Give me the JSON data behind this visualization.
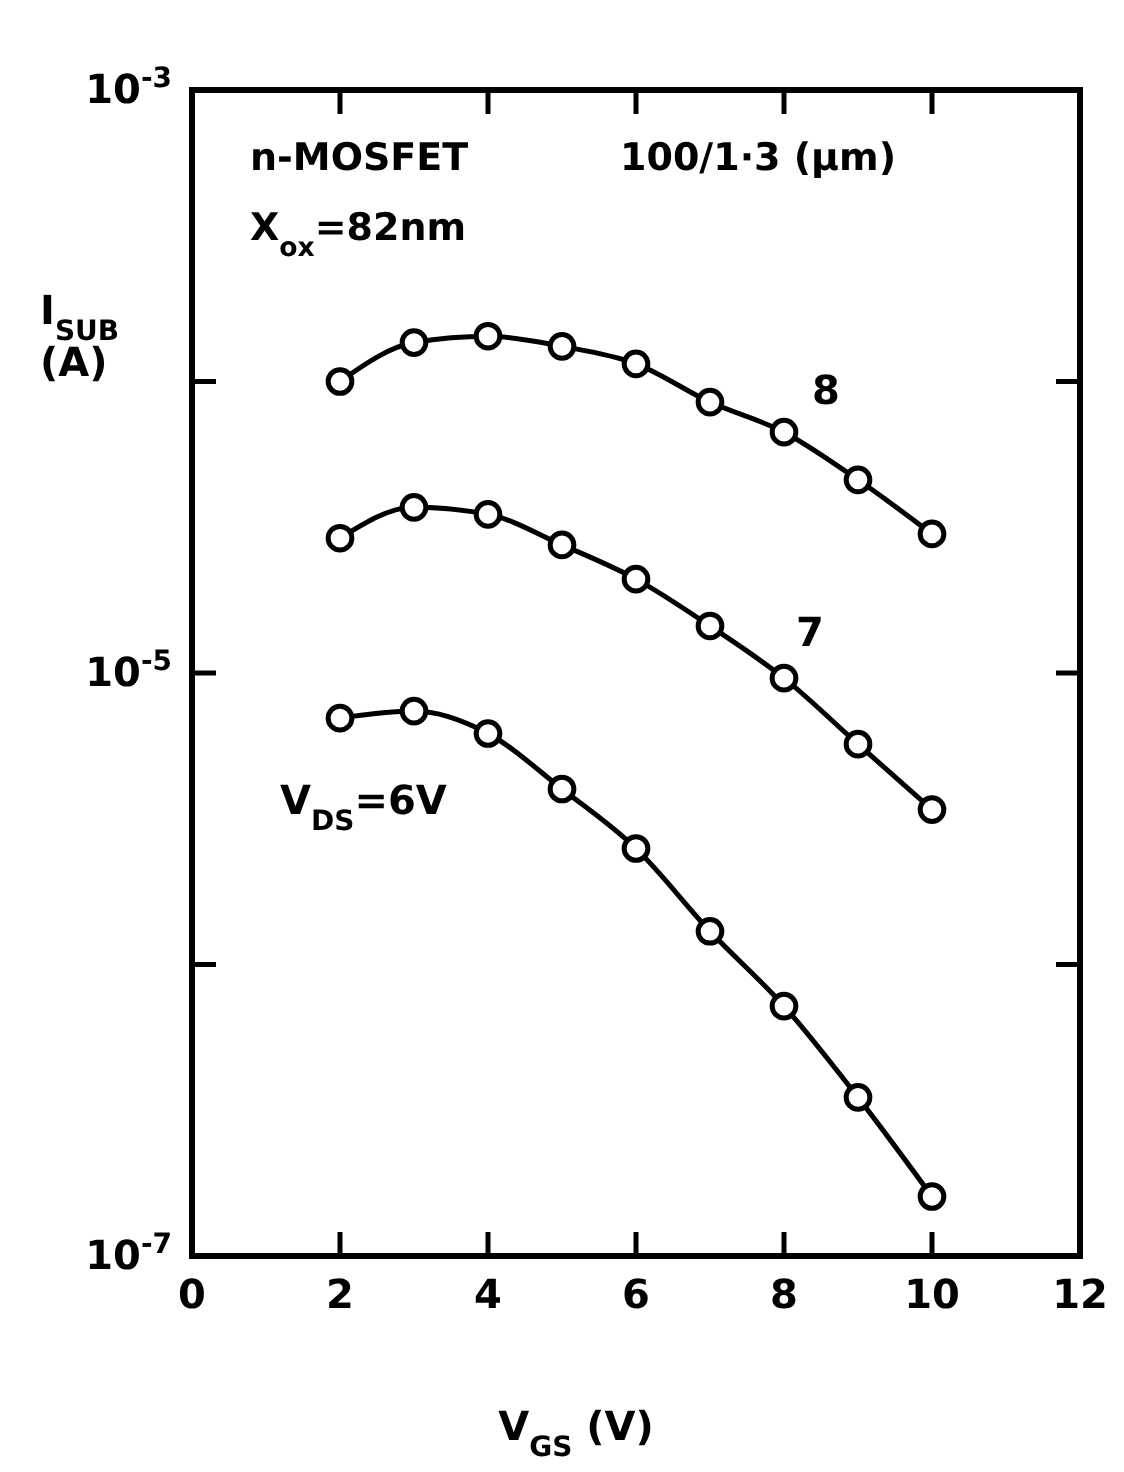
{
  "chart_data": {
    "type": "line",
    "xlabel": "V$_{GS}$ (V)",
    "ylabel": "I$_{SUB}$ (A)",
    "annotations": [
      "n-MOSFET",
      "100/1·3 (μm)",
      "X$_{ox}$=82nm"
    ],
    "x": [
      2,
      3,
      4,
      5,
      6,
      7,
      8,
      9,
      10
    ],
    "series": [
      {
        "name": "8",
        "color": "#000000",
        "values": [
          0.0001,
          0.000136,
          0.000143,
          0.000132,
          0.000115,
          8.5e-05,
          6.7e-05,
          4.6e-05,
          3e-05
        ]
      },
      {
        "name": "7",
        "color": "#000000",
        "values": [
          2.9e-05,
          3.7e-05,
          3.5e-05,
          2.75e-05,
          2.1e-05,
          1.45e-05,
          9.6e-06,
          5.7e-06,
          3.4e-06
        ]
      },
      {
        "name": "V$_{DS}$=6V",
        "color": "#000000",
        "values": [
          7e-06,
          7.4e-06,
          6.2e-06,
          4e-06,
          2.5e-06,
          1.3e-06,
          7.2e-07,
          3.5e-07,
          1.6e-07
        ]
      }
    ],
    "xlim": [
      0,
      12
    ],
    "xticks": [
      0,
      2,
      4,
      6,
      8,
      10,
      12
    ],
    "ylim": [
      1e-07,
      0.001
    ],
    "yticks": [
      {
        "value": 1e-07,
        "label": "10$^{-7}$"
      },
      {
        "value": 1e-06,
        "label": null
      },
      {
        "value": 1e-05,
        "label": "10$^{-5}$"
      },
      {
        "value": 0.0001,
        "label": null
      },
      {
        "value": 0.001,
        "label": "10$^{-3}$"
      }
    ],
    "log": "y",
    "grid": false,
    "legend": false,
    "marker": "circle",
    "line_style": "solid"
  }
}
